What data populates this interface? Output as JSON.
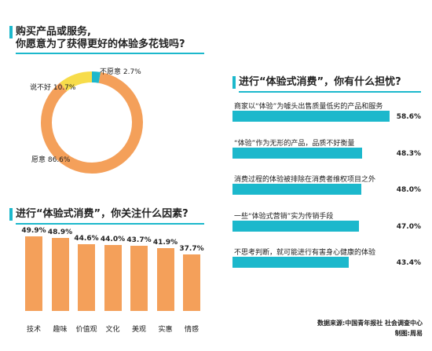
{
  "colors": {
    "accent": "#1cb8cc",
    "orange": "#f4a05a",
    "yellow": "#f7dc4a",
    "teal": "#1cb8cc"
  },
  "chart_data": [
    {
      "type": "pie",
      "title_line1": "购买产品或服务,",
      "title_line2": "你愿意为了获得更好的体验多花钱吗?",
      "slices": [
        {
          "label": "愿意",
          "value": 86.6,
          "display": "愿意 86.6%",
          "color": "#f4a05a"
        },
        {
          "label": "说不好",
          "value": 10.7,
          "display": "说不好 10.7%",
          "color": "#f7dc4a"
        },
        {
          "label": "不愿意",
          "value": 2.7,
          "display": "不愿意 2.7%",
          "color": "#1cb8cc"
        }
      ]
    },
    {
      "type": "bar",
      "orientation": "horizontal",
      "title": "进行“体验式消费”，你有什么担忧?",
      "xlim": [
        0,
        60
      ],
      "items": [
        {
          "label": "商家以“体验”为噱头出售质量低劣的产品和服务",
          "value": 58.6,
          "display": "58.6%"
        },
        {
          "label": "“体验”作为无形的产品，品质不好衡量",
          "value": 48.3,
          "display": "48.3%"
        },
        {
          "label": "消费过程的体验被排除在消费者维权项目之外",
          "value": 48.0,
          "display": "48.0%"
        },
        {
          "label": "一些“体验式营销”实为传销手段",
          "value": 47.0,
          "display": "47.0%"
        },
        {
          "label": "不思考判断，就可能进行有害身心健康的体验",
          "value": 43.4,
          "display": "43.4%"
        }
      ]
    },
    {
      "type": "bar",
      "orientation": "vertical",
      "title": "进行“体验式消费”，你关注什么因素?",
      "ylim": [
        0,
        50
      ],
      "categories": [
        "技术",
        "趣味",
        "价值观",
        "文化",
        "美观",
        "实惠",
        "情感"
      ],
      "values": [
        49.9,
        48.9,
        44.6,
        44.0,
        43.7,
        41.9,
        37.7
      ],
      "display": [
        "49.9%",
        "48.9%",
        "44.6%",
        "44.0%",
        "43.7%",
        "41.9%",
        "37.7%"
      ]
    }
  ],
  "footer": {
    "source": "数据来源:中国青年报社 社会调查中心",
    "credit": "制图:周易"
  }
}
